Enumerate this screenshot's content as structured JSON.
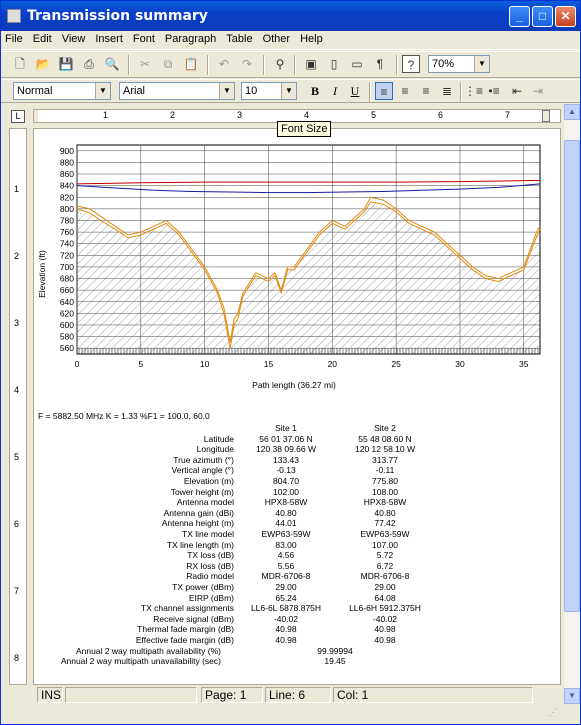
{
  "window": {
    "title": "Transmission summary"
  },
  "menu": [
    "File",
    "Edit",
    "View",
    "Insert",
    "Font",
    "Paragraph",
    "Table",
    "Other",
    "Help"
  ],
  "toolbar": {
    "zoom": "70%"
  },
  "format": {
    "style": "Normal",
    "font": "Arial",
    "size": "10",
    "bold": "B",
    "italic": "I",
    "underline": "U"
  },
  "ruler": {
    "numbers": [
      "1",
      "2",
      "3",
      "4",
      "5",
      "6",
      "7"
    ]
  },
  "vruler": {
    "numbers": [
      "1",
      "2",
      "3",
      "4",
      "5",
      "6",
      "7",
      "8"
    ]
  },
  "tooltip": "Font Size",
  "chart_data": {
    "type": "line",
    "xlabel": "Path length (36.27 mi)",
    "ylabel": "Elevation (ft)",
    "xlim": [
      0,
      36.27
    ],
    "ylim": [
      550,
      910
    ],
    "xticks": [
      0,
      5,
      10,
      15,
      20,
      25,
      30,
      35
    ],
    "yticks": [
      560,
      580,
      600,
      620,
      640,
      660,
      680,
      700,
      720,
      740,
      760,
      780,
      800,
      820,
      840,
      860,
      880,
      900
    ],
    "series": [
      {
        "color": "#c00000",
        "x": [
          0,
          5,
          10,
          15,
          20,
          25,
          30,
          36.27
        ],
        "y": [
          843,
          845,
          846,
          846,
          846,
          846,
          847,
          849
        ]
      },
      {
        "color": "#1a1aa0",
        "x": [
          0,
          3,
          6,
          9,
          12,
          15,
          18,
          21,
          24,
          27,
          30,
          33,
          36.27
        ],
        "y": [
          840,
          836,
          832,
          830,
          829,
          828,
          828,
          829,
          830,
          832,
          834,
          837,
          843
        ]
      },
      {
        "color": "#e08a10",
        "x": [
          0,
          1,
          2,
          3,
          4,
          5,
          6,
          7,
          8,
          9,
          10,
          11,
          11.5,
          12,
          12.3,
          12.6,
          13,
          14,
          15,
          15.5,
          16,
          16.5,
          17,
          18,
          19,
          20,
          21,
          22,
          22.5,
          23,
          24,
          25,
          26,
          27,
          28,
          29,
          30,
          31,
          32,
          33,
          34,
          35,
          36,
          36.27
        ],
        "y": [
          805,
          800,
          785,
          770,
          755,
          760,
          770,
          780,
          760,
          730,
          700,
          660,
          630,
          570,
          610,
          620,
          655,
          690,
          680,
          690,
          660,
          700,
          700,
          730,
          760,
          780,
          770,
          790,
          800,
          820,
          815,
          800,
          780,
          770,
          760,
          740,
          720,
          700,
          685,
          680,
          690,
          700,
          760,
          770
        ]
      },
      {
        "color": "#e08a10",
        "x": [
          0,
          1,
          2,
          3,
          4,
          5,
          6,
          7,
          8,
          9,
          10,
          11,
          11.5,
          12,
          12.3,
          12.6,
          13,
          14,
          15,
          15.5,
          16,
          16.5,
          17,
          18,
          19,
          20,
          21,
          22,
          22.5,
          23,
          24,
          25,
          26,
          27,
          28,
          29,
          30,
          31,
          32,
          33,
          34,
          35,
          36,
          36.27
        ],
        "y": [
          800,
          793,
          778,
          765,
          750,
          755,
          765,
          775,
          755,
          725,
          695,
          655,
          620,
          560,
          600,
          610,
          650,
          685,
          675,
          685,
          655,
          695,
          695,
          725,
          755,
          775,
          765,
          785,
          795,
          812,
          808,
          795,
          775,
          765,
          755,
          735,
          715,
          695,
          680,
          675,
          685,
          695,
          752,
          765
        ]
      }
    ]
  },
  "freq_line": "F = 5882.50 MHz  K = 1.33  %F1 = 100.0, 60.0",
  "report": {
    "site1": "Site 1",
    "site2": "Site 2",
    "rows": [
      {
        "label": "Latitude",
        "v1": "56 01 37.06 N",
        "v2": "55 48 08.60 N"
      },
      {
        "label": "Longitude",
        "v1": "120 38 09.66 W",
        "v2": "120 12 58.10 W"
      },
      {
        "label": "True azimuth (°)",
        "v1": "133.43",
        "v2": "313.77"
      },
      {
        "label": "Vertical angle (°)",
        "v1": "-0.13",
        "v2": "-0.11"
      },
      {
        "label": "Elevation (m)",
        "v1": "804.70",
        "v2": "775.80"
      },
      {
        "label": "Tower height (m)",
        "v1": "102.00",
        "v2": "108.00"
      },
      {
        "label": "Antenna model",
        "v1": "HPX8-58W",
        "v2": "HPX8-58W"
      },
      {
        "label": "Antenna gain (dBi)",
        "v1": "40.80",
        "v2": "40.80"
      },
      {
        "label": "Antenna height (m)",
        "v1": "44.01",
        "v2": "77.42"
      },
      {
        "label": "TX line model",
        "v1": "EWP63-59W",
        "v2": "EWP63-59W"
      },
      {
        "label": "TX line length (m)",
        "v1": "83.00",
        "v2": "107.00"
      },
      {
        "label": "TX loss (dB)",
        "v1": "4.56",
        "v2": "5.72"
      },
      {
        "label": "RX loss (dB)",
        "v1": "5.56",
        "v2": "6.72"
      },
      {
        "label": "Radio model",
        "v1": "MDR-6706-8",
        "v2": "MDR-6706-8"
      },
      {
        "label": "TX power (dBm)",
        "v1": "29.00",
        "v2": "29.00"
      },
      {
        "label": "EIRP (dBm)",
        "v1": "65.24",
        "v2": "64.08"
      },
      {
        "label": "TX channel assignments",
        "v1": "LL6-6L 5878.875H",
        "v2": "LL6-6H 5912.375H"
      },
      {
        "label": "Receive signal (dBm)",
        "v1": "-40.02",
        "v2": "-40.02"
      },
      {
        "label": "Thermal fade margin (dB)",
        "v1": "40.98",
        "v2": "40.98"
      },
      {
        "label": "Effective fade margin (dB)",
        "v1": "40.98",
        "v2": "40.98"
      }
    ],
    "avail_label": "Annual 2 way multipath availability (%)",
    "avail_value": "99.99994",
    "unavail_label": "Annual 2 way multipath unavailability (sec)",
    "unavail_value": "19.45"
  },
  "status": {
    "mode": "INS",
    "page": "Page: 1",
    "line": "Line: 6",
    "col": "Col: 1"
  }
}
